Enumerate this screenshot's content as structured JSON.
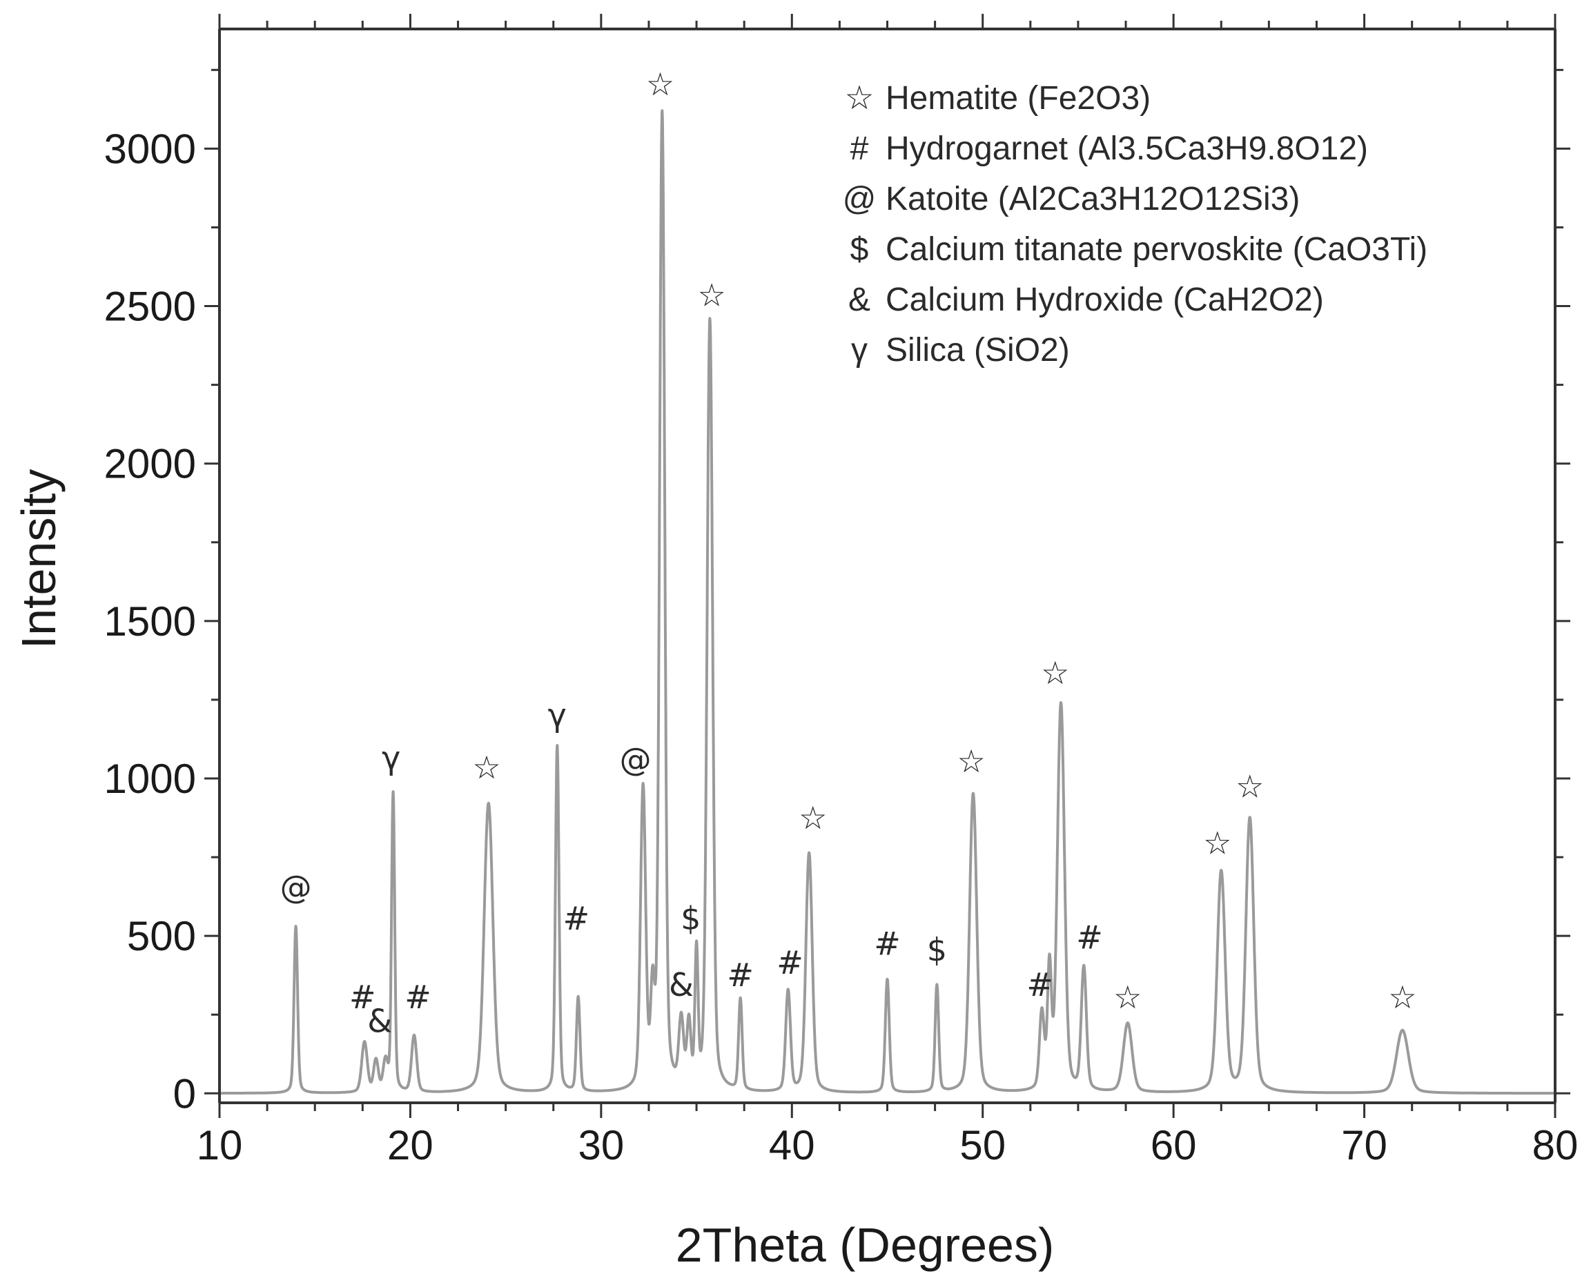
{
  "chart_data": {
    "type": "line",
    "title": "",
    "xlabel": "2Theta (Degrees)",
    "ylabel": "Intensity",
    "xlim": [
      10,
      80
    ],
    "ylim": [
      -30,
      3380
    ],
    "xticks": [
      10,
      20,
      30,
      40,
      50,
      60,
      70,
      80
    ],
    "xtick_labels": [
      "10",
      "20",
      "30",
      "40",
      "50",
      "60",
      "70",
      "80"
    ],
    "yticks": [
      0,
      500,
      1000,
      1500,
      2000,
      2500,
      3000
    ],
    "ytick_labels": [
      "0",
      "500",
      "1000",
      "1500",
      "2000",
      "2500",
      "3000"
    ],
    "grid": false,
    "legend_position": "top-right",
    "line_color": "#9a9a9a",
    "baseline": 0,
    "peaks": [
      {
        "x": 14.0,
        "y": 530,
        "w": 0.09
      },
      {
        "x": 17.6,
        "y": 160,
        "w": 0.14
      },
      {
        "x": 18.2,
        "y": 100,
        "w": 0.12
      },
      {
        "x": 18.7,
        "y": 95,
        "w": 0.12
      },
      {
        "x": 19.1,
        "y": 950,
        "w": 0.08
      },
      {
        "x": 20.2,
        "y": 180,
        "w": 0.13
      },
      {
        "x": 24.1,
        "y": 920,
        "w": 0.22
      },
      {
        "x": 27.7,
        "y": 1100,
        "w": 0.09
      },
      {
        "x": 28.8,
        "y": 300,
        "w": 0.09
      },
      {
        "x": 32.2,
        "y": 950,
        "w": 0.13
      },
      {
        "x": 32.7,
        "y": 280,
        "w": 0.1
      },
      {
        "x": 33.2,
        "y": 3100,
        "w": 0.13
      },
      {
        "x": 34.2,
        "y": 210,
        "w": 0.12
      },
      {
        "x": 34.6,
        "y": 200,
        "w": 0.1
      },
      {
        "x": 35.0,
        "y": 420,
        "w": 0.08
      },
      {
        "x": 35.7,
        "y": 2450,
        "w": 0.14
      },
      {
        "x": 37.3,
        "y": 290,
        "w": 0.09
      },
      {
        "x": 39.8,
        "y": 320,
        "w": 0.12
      },
      {
        "x": 40.9,
        "y": 760,
        "w": 0.16
      },
      {
        "x": 45.0,
        "y": 360,
        "w": 0.1
      },
      {
        "x": 47.6,
        "y": 340,
        "w": 0.09
      },
      {
        "x": 49.5,
        "y": 950,
        "w": 0.18
      },
      {
        "x": 53.1,
        "y": 240,
        "w": 0.12
      },
      {
        "x": 53.5,
        "y": 380,
        "w": 0.1
      },
      {
        "x": 54.1,
        "y": 1230,
        "w": 0.18
      },
      {
        "x": 55.3,
        "y": 390,
        "w": 0.13
      },
      {
        "x": 57.6,
        "y": 220,
        "w": 0.22
      },
      {
        "x": 62.5,
        "y": 700,
        "w": 0.2
      },
      {
        "x": 64.0,
        "y": 870,
        "w": 0.2
      },
      {
        "x": 72.0,
        "y": 200,
        "w": 0.3
      }
    ],
    "markers": [
      {
        "label": "@",
        "x": 14.0,
        "y": 620,
        "size": "large"
      },
      {
        "label": "#",
        "x": 17.5,
        "y": 270
      },
      {
        "label": "&",
        "x": 18.4,
        "y": 195
      },
      {
        "label": "γ",
        "x": 19.0,
        "y": 1030,
        "style": "serif"
      },
      {
        "label": "#",
        "x": 20.4,
        "y": 270
      },
      {
        "label": "☆",
        "x": 24.0,
        "y": 1000
      },
      {
        "label": "γ",
        "x": 27.7,
        "y": 1165,
        "style": "serif"
      },
      {
        "label": "#",
        "x": 28.7,
        "y": 520
      },
      {
        "label": "@",
        "x": 31.8,
        "y": 1025,
        "size": "large"
      },
      {
        "label": "☆",
        "x": 33.1,
        "y": 3170
      },
      {
        "label": "&",
        "x": 34.2,
        "y": 310
      },
      {
        "label": "$",
        "x": 34.7,
        "y": 520
      },
      {
        "label": "☆",
        "x": 35.8,
        "y": 2500
      },
      {
        "label": "#",
        "x": 37.3,
        "y": 340
      },
      {
        "label": "#",
        "x": 39.9,
        "y": 380
      },
      {
        "label": "☆",
        "x": 41.1,
        "y": 840
      },
      {
        "label": "#",
        "x": 45.0,
        "y": 440
      },
      {
        "label": "$",
        "x": 47.6,
        "y": 420
      },
      {
        "label": "☆",
        "x": 49.4,
        "y": 1020
      },
      {
        "label": "#",
        "x": 53.0,
        "y": 310
      },
      {
        "label": "☆",
        "x": 53.8,
        "y": 1300
      },
      {
        "label": "#",
        "x": 55.6,
        "y": 460
      },
      {
        "label": "☆",
        "x": 57.6,
        "y": 270
      },
      {
        "label": "☆",
        "x": 62.3,
        "y": 760
      },
      {
        "label": "☆",
        "x": 64.0,
        "y": 940
      },
      {
        "label": "☆",
        "x": 72.0,
        "y": 270
      }
    ],
    "legend": [
      {
        "symbol": "☆",
        "text": "Hematite (Fe2O3)"
      },
      {
        "symbol": "#",
        "text": "Hydrogarnet (Al3.5Ca3H9.8O12)"
      },
      {
        "symbol": "@",
        "text": "Katoite (Al2Ca3H12O12Si3)"
      },
      {
        "symbol": "$",
        "text": "Calcium titanate pervoskite (CaO3Ti)"
      },
      {
        "symbol": "&",
        "text": "Calcium Hydroxide (CaH2O2)"
      },
      {
        "symbol": "γ",
        "text": "Silica (SiO2)",
        "style": "serif"
      }
    ]
  }
}
